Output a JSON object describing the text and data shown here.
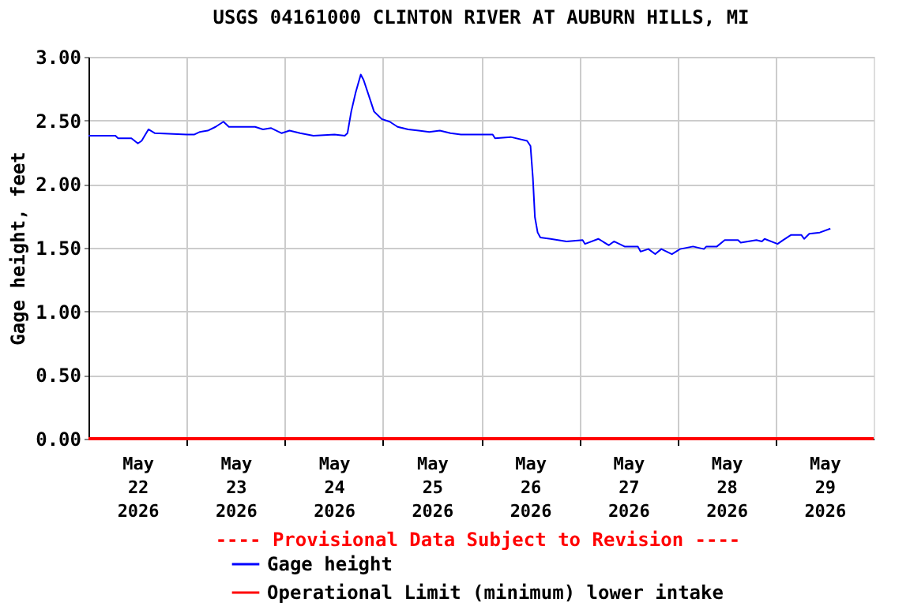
{
  "chart_data": {
    "type": "line",
    "title": "USGS 04161000 CLINTON RIVER AT AUBURN HILLS, MI",
    "ylabel": "Gage height, feet",
    "annotations": [
      "---- Provisional Data Subject to Revision ----"
    ],
    "x": [
      "2026-05-22T00:00",
      "2026-05-22T03:20",
      "2026-05-22T06:35",
      "2026-05-22T07:15",
      "2026-05-22T10:30",
      "2026-05-22T12:05",
      "2026-05-22T13:00",
      "2026-05-22T14:40",
      "2026-05-22T16:15",
      "2026-05-23T00:00",
      "2026-05-23T01:55",
      "2026-05-23T03:15",
      "2026-05-23T05:10",
      "2026-05-23T07:05",
      "2026-05-23T09:00",
      "2026-05-23T10:20",
      "2026-05-23T16:45",
      "2026-05-23T18:40",
      "2026-05-23T20:40",
      "2026-05-23T23:15",
      "2026-05-24T01:10",
      "2026-05-24T03:45",
      "2026-05-24T07:00",
      "2026-05-24T12:10",
      "2026-05-24T14:40",
      "2026-05-24T15:20",
      "2026-05-24T16:15",
      "2026-05-24T17:20",
      "2026-05-24T18:35",
      "2026-05-24T19:15",
      "2026-05-24T20:30",
      "2026-05-24T21:50",
      "2026-05-24T23:45",
      "2026-05-25T01:40",
      "2026-05-25T03:35",
      "2026-05-25T06:10",
      "2026-05-25T08:45",
      "2026-05-25T11:20",
      "2026-05-25T13:55",
      "2026-05-25T16:30",
      "2026-05-25T19:05",
      "2026-05-25T21:40",
      "2026-05-26T02:50",
      "2026-05-26T03:25",
      "2026-05-26T07:15",
      "2026-05-26T11:15",
      "2026-05-26T12:05",
      "2026-05-26T12:40",
      "2026-05-26T13:10",
      "2026-05-26T13:50",
      "2026-05-26T14:30",
      "2026-05-26T17:00",
      "2026-05-26T20:55",
      "2026-05-27T00:50",
      "2026-05-27T01:25",
      "2026-05-27T04:40",
      "2026-05-27T07:15",
      "2026-05-27T08:30",
      "2026-05-27T11:05",
      "2026-05-27T14:20",
      "2026-05-27T15:00",
      "2026-05-27T16:55",
      "2026-05-27T18:35",
      "2026-05-27T20:05",
      "2026-05-27T22:40",
      "2026-05-28T00:40",
      "2026-05-28T03:50",
      "2026-05-28T06:30",
      "2026-05-28T07:05",
      "2026-05-28T09:40",
      "2026-05-28T11:35",
      "2026-05-28T14:50",
      "2026-05-28T15:30",
      "2026-05-28T19:20",
      "2026-05-28T20:40",
      "2026-05-28T21:20",
      "2026-05-29T00:30",
      "2026-05-29T01:50",
      "2026-05-29T03:45",
      "2026-05-29T06:20",
      "2026-05-29T07:00",
      "2026-05-29T08:15",
      "2026-05-29T10:50",
      "2026-05-29T13:25"
    ],
    "series": [
      {
        "name": "Gage height",
        "color": "#0000ff",
        "values": [
          2.38,
          2.38,
          2.38,
          2.36,
          2.36,
          2.32,
          2.34,
          2.43,
          2.4,
          2.39,
          2.39,
          2.41,
          2.42,
          2.45,
          2.49,
          2.45,
          2.45,
          2.43,
          2.44,
          2.4,
          2.42,
          2.4,
          2.38,
          2.39,
          2.38,
          2.4,
          2.57,
          2.72,
          2.86,
          2.82,
          2.7,
          2.57,
          2.51,
          2.49,
          2.45,
          2.43,
          2.42,
          2.41,
          2.42,
          2.4,
          2.39,
          2.39,
          2.39,
          2.36,
          2.37,
          2.34,
          2.3,
          2.05,
          1.74,
          1.62,
          1.58,
          1.57,
          1.55,
          1.56,
          1.53,
          1.57,
          1.52,
          1.55,
          1.51,
          1.51,
          1.47,
          1.49,
          1.45,
          1.49,
          1.45,
          1.49,
          1.51,
          1.49,
          1.51,
          1.51,
          1.56,
          1.56,
          1.54,
          1.56,
          1.55,
          1.57,
          1.53,
          1.56,
          1.6,
          1.6,
          1.57,
          1.61,
          1.62,
          1.65
        ]
      }
    ],
    "ref_lines": [
      {
        "axis": "y",
        "value": 0,
        "label": "Operational Limit (minimum) lower intake",
        "color": "#ff0000"
      }
    ],
    "xlim": [
      "2026-05-22T00:00",
      "2026-05-30T00:00"
    ],
    "xticks": [
      {
        "value": "2026-05-22T12:00",
        "label": "May\n22\n2026"
      },
      {
        "value": "2026-05-23T12:00",
        "label": "May\n23\n2026"
      },
      {
        "value": "2026-05-24T12:00",
        "label": "May\n24\n2026"
      },
      {
        "value": "2026-05-25T12:00",
        "label": "May\n25\n2026"
      },
      {
        "value": "2026-05-26T12:00",
        "label": "May\n26\n2026"
      },
      {
        "value": "2026-05-27T12:00",
        "label": "May\n27\n2026"
      },
      {
        "value": "2026-05-28T12:00",
        "label": "May\n28\n2026"
      },
      {
        "value": "2026-05-29T12:00",
        "label": "May\n29\n2026"
      },
      {
        "value": "2026-05-23T00:00",
        "label": null
      },
      {
        "value": "2026-05-24T00:00",
        "label": null
      },
      {
        "value": "2026-05-25T00:00",
        "label": null
      },
      {
        "value": "2026-05-26T00:00",
        "label": null
      },
      {
        "value": "2026-05-27T00:00",
        "label": null
      },
      {
        "value": "2026-05-28T00:00",
        "label": null
      },
      {
        "value": "2026-05-29T00:00",
        "label": null
      }
    ],
    "ylim": [
      0,
      3
    ],
    "yticks": [
      {
        "value": 0,
        "label": "0.00"
      },
      {
        "value": 0.5,
        "label": "0.50"
      },
      {
        "value": 1,
        "label": "1.00"
      },
      {
        "value": 1.5,
        "label": "1.50"
      },
      {
        "value": 2,
        "label": "2.00"
      },
      {
        "value": 2.5,
        "label": "2.50"
      },
      {
        "value": 3,
        "label": "3.00"
      }
    ],
    "grid": true,
    "legend": "bottom",
    "line_style": "solid",
    "marker": "none"
  }
}
